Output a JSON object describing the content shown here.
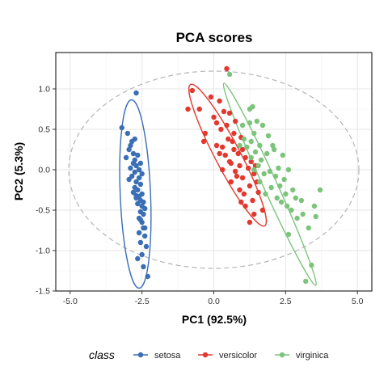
{
  "chart_data": {
    "type": "scatter",
    "title": "PCA scores",
    "xlabel": "PC1 (92.5%)",
    "ylabel": "PC2 (5.3%)",
    "xlim": [
      -5.5,
      5.5
    ],
    "ylim": [
      -1.5,
      1.45
    ],
    "xticks": [
      -5.0,
      -2.5,
      0.0,
      2.5,
      5.0
    ],
    "xtick_labels": [
      "-5.0",
      "-2.5",
      "0.0",
      "2.5",
      "5.0"
    ],
    "yticks": [
      -1.5,
      -1.0,
      -0.5,
      0.0,
      0.5,
      1.0
    ],
    "ytick_labels": [
      "-1.5",
      "-1.0",
      "-0.5",
      "0.0",
      "0.5",
      "1.0"
    ],
    "grid": true,
    "legend": {
      "title": "class",
      "position": "bottom"
    },
    "series": [
      {
        "name": "setosa",
        "color": "#3a6eb5",
        "points": [
          [
            -2.7,
            0.95
          ],
          [
            -3.2,
            0.52
          ],
          [
            -3.0,
            0.45
          ],
          [
            -2.85,
            0.35
          ],
          [
            -2.95,
            0.25
          ],
          [
            -2.8,
            0.2
          ],
          [
            -2.65,
            0.18
          ],
          [
            -2.75,
            0.12
          ],
          [
            -2.55,
            0.08
          ],
          [
            -2.7,
            0.05
          ],
          [
            -2.9,
            0.02
          ],
          [
            -2.6,
            0.0
          ],
          [
            -2.75,
            -0.03
          ],
          [
            -2.5,
            -0.05
          ],
          [
            -2.85,
            -0.08
          ],
          [
            -2.6,
            -0.1
          ],
          [
            -2.7,
            -0.15
          ],
          [
            -2.55,
            -0.18
          ],
          [
            -2.75,
            -0.22
          ],
          [
            -2.65,
            -0.25
          ],
          [
            -2.8,
            -0.28
          ],
          [
            -2.5,
            -0.3
          ],
          [
            -2.6,
            -0.33
          ],
          [
            -2.7,
            -0.35
          ],
          [
            -2.55,
            -0.38
          ],
          [
            -2.45,
            -0.4
          ],
          [
            -2.65,
            -0.42
          ],
          [
            -2.5,
            -0.45
          ],
          [
            -2.4,
            -0.48
          ],
          [
            -2.55,
            -0.52
          ],
          [
            -2.45,
            -0.55
          ],
          [
            -2.6,
            -0.6
          ],
          [
            -2.5,
            -0.65
          ],
          [
            -2.45,
            -0.72
          ],
          [
            -2.6,
            -0.78
          ],
          [
            -2.4,
            -0.82
          ],
          [
            -2.55,
            -0.9
          ],
          [
            -2.35,
            -0.95
          ],
          [
            -2.5,
            -1.05
          ],
          [
            -2.65,
            -1.1
          ],
          [
            -2.45,
            -1.2
          ],
          [
            -2.3,
            -1.32
          ],
          [
            -2.9,
            0.3
          ],
          [
            -2.75,
            0.38
          ],
          [
            -3.05,
            0.15
          ],
          [
            -2.8,
            0.08
          ],
          [
            -2.95,
            -0.12
          ],
          [
            -2.7,
            -0.32
          ],
          [
            -2.55,
            -0.62
          ],
          [
            -2.4,
            -0.72
          ]
        ]
      },
      {
        "name": "versicolor",
        "color": "#e2382e",
        "points": [
          [
            -0.75,
            0.98
          ],
          [
            0.45,
            1.25
          ],
          [
            -0.5,
            0.75
          ],
          [
            -0.1,
            0.9
          ],
          [
            0.2,
            0.85
          ],
          [
            -0.9,
            0.75
          ],
          [
            0.0,
            0.65
          ],
          [
            0.35,
            0.72
          ],
          [
            0.55,
            0.7
          ],
          [
            0.1,
            0.58
          ],
          [
            0.45,
            0.55
          ],
          [
            0.25,
            0.5
          ],
          [
            0.7,
            0.45
          ],
          [
            -0.3,
            0.45
          ],
          [
            0.95,
            0.4
          ],
          [
            0.5,
            0.38
          ],
          [
            0.1,
            0.3
          ],
          [
            -0.35,
            0.35
          ],
          [
            0.3,
            0.28
          ],
          [
            0.7,
            0.25
          ],
          [
            0.85,
            0.2
          ],
          [
            0.4,
            0.18
          ],
          [
            1.1,
            0.15
          ],
          [
            0.6,
            0.08
          ],
          [
            0.9,
            0.05
          ],
          [
            1.2,
            0.02
          ],
          [
            0.75,
            -0.02
          ],
          [
            1.4,
            -0.05
          ],
          [
            1.0,
            -0.1
          ],
          [
            0.6,
            -0.15
          ],
          [
            1.25,
            -0.2
          ],
          [
            0.9,
            -0.25
          ],
          [
            1.55,
            -0.28
          ],
          [
            1.05,
            -0.3
          ],
          [
            1.35,
            -0.38
          ],
          [
            1.1,
            -0.45
          ],
          [
            1.7,
            -0.5
          ],
          [
            1.4,
            -0.55
          ],
          [
            1.25,
            -0.65
          ],
          [
            0.55,
            0.1
          ],
          [
            0.3,
            0.0
          ],
          [
            0.8,
            -0.08
          ],
          [
            1.0,
            0.25
          ],
          [
            0.65,
            0.35
          ],
          [
            1.3,
            0.1
          ],
          [
            0.2,
            0.2
          ],
          [
            1.5,
            -0.15
          ],
          [
            0.95,
            -0.4
          ],
          [
            1.45,
            0.05
          ],
          [
            0.75,
            0.6
          ]
        ]
      },
      {
        "name": "virginica",
        "color": "#7cc47c",
        "points": [
          [
            0.55,
            1.18
          ],
          [
            1.35,
            0.78
          ],
          [
            1.25,
            0.75
          ],
          [
            1.5,
            0.6
          ],
          [
            1.7,
            0.55
          ],
          [
            1.25,
            0.58
          ],
          [
            1.0,
            0.55
          ],
          [
            1.4,
            0.45
          ],
          [
            1.9,
            0.42
          ],
          [
            1.05,
            0.38
          ],
          [
            1.3,
            0.35
          ],
          [
            1.6,
            0.3
          ],
          [
            0.9,
            0.3
          ],
          [
            1.15,
            0.28
          ],
          [
            1.45,
            0.22
          ],
          [
            2.1,
            0.25
          ],
          [
            1.85,
            0.2
          ],
          [
            1.3,
            0.15
          ],
          [
            1.65,
            0.12
          ],
          [
            2.4,
            0.18
          ],
          [
            1.55,
            0.05
          ],
          [
            2.25,
            0.02
          ],
          [
            1.95,
            -0.02
          ],
          [
            2.6,
            0.0
          ],
          [
            1.75,
            -0.05
          ],
          [
            2.15,
            -0.08
          ],
          [
            2.45,
            -0.12
          ],
          [
            1.6,
            -0.15
          ],
          [
            2.3,
            -0.2
          ],
          [
            2.75,
            -0.25
          ],
          [
            2.0,
            -0.22
          ],
          [
            2.5,
            -0.3
          ],
          [
            2.85,
            -0.35
          ],
          [
            2.2,
            -0.35
          ],
          [
            3.05,
            -0.38
          ],
          [
            2.55,
            -0.45
          ],
          [
            3.5,
            -0.45
          ],
          [
            2.7,
            -0.5
          ],
          [
            3.1,
            -0.55
          ],
          [
            3.7,
            -0.25
          ],
          [
            2.9,
            -0.6
          ],
          [
            3.3,
            -0.72
          ],
          [
            2.6,
            -0.8
          ],
          [
            3.4,
            -1.18
          ],
          [
            3.2,
            -1.38
          ],
          [
            2.35,
            -0.4
          ],
          [
            1.8,
            -0.3
          ],
          [
            2.05,
            0.3
          ],
          [
            1.4,
            0.0
          ],
          [
            3.55,
            -0.58
          ]
        ]
      }
    ],
    "ellipses": [
      {
        "series": "setosa",
        "color": "#3a6eb5",
        "center": [
          -2.73,
          -0.3
        ],
        "corners": [
          [
            -2.67,
            0.98
          ],
          [
            -2.4,
            -1.35
          ],
          [
            -3.27,
            0.5
          ],
          [
            -2.13,
            -0.22
          ]
        ]
      },
      {
        "series": "versicolor",
        "color": "#e2382e",
        "center": [
          0.48,
          0.18
        ],
        "corners": [
          [
            -0.9,
            0.9
          ],
          [
            1.68,
            -0.85
          ],
          [
            -0.95,
            1.28
          ],
          [
            1.72,
            -1.2
          ]
        ]
      },
      {
        "series": "virginica",
        "color": "#7cc47c",
        "center": [
          1.95,
          -0.18
        ],
        "corners": [
          [
            0.6,
            1.2
          ],
          [
            3.8,
            -1.3
          ],
          [
            0.4,
            1.08
          ],
          [
            3.95,
            -1.38
          ]
        ]
      }
    ],
    "confidence_circle": {
      "style": "dashed",
      "color": "#b5b5b5",
      "cx": 0.0,
      "cy": 0.0,
      "rx": 5.05,
      "ry": 1.22
    }
  }
}
